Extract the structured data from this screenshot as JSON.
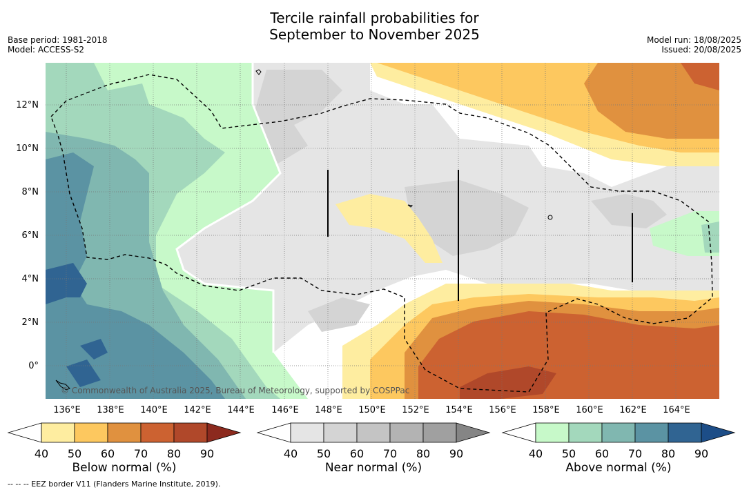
{
  "title_line1": "Tercile rainfall probabilities for",
  "title_line2": "September to November 2025",
  "meta_left": [
    "Base period: 1981-2018",
    "Model: ACCESS-S2"
  ],
  "meta_right": [
    "Model run: 18/08/2025",
    "Issued: 20/08/2025"
  ],
  "copyright": "© Commonwealth of Australia 2025, Bureau of Meteorology, supported by COSPPac",
  "footnote": "--  --  -- EEZ border V11 (Flanders Marine Institute, 2019).",
  "lon_ticks": [
    "136°E",
    "138°E",
    "140°E",
    "142°E",
    "144°E",
    "146°E",
    "148°E",
    "150°E",
    "152°E",
    "154°E",
    "156°E",
    "158°E",
    "160°E",
    "162°E",
    "164°E"
  ],
  "lat_ticks": [
    "12°N",
    "10°N",
    "8°N",
    "6°N",
    "4°N",
    "2°N",
    "0°"
  ],
  "colorbars": [
    {
      "label": "Below normal (%)",
      "ticks": [
        "40",
        "50",
        "60",
        "70",
        "80",
        "90"
      ],
      "colors": [
        "#ffffff",
        "#feeda0",
        "#fdc85f",
        "#e0913f",
        "#cc6231",
        "#b0482a",
        "#8c2a1e"
      ]
    },
    {
      "label": "Near normal (%)",
      "ticks": [
        "40",
        "50",
        "60",
        "70",
        "80",
        "90"
      ],
      "colors": [
        "#ffffff",
        "#e5e5e5",
        "#d4d4d4",
        "#c4c4c4",
        "#b3b3b3",
        "#a0a0a0",
        "#858585"
      ]
    },
    {
      "label": "Above normal (%)",
      "ticks": [
        "40",
        "50",
        "60",
        "70",
        "80",
        "90"
      ],
      "colors": [
        "#ffffff",
        "#c7f9c9",
        "#a3d8bc",
        "#80b7b0",
        "#5b93a3",
        "#306492",
        "#1c4d87"
      ]
    }
  ]
}
